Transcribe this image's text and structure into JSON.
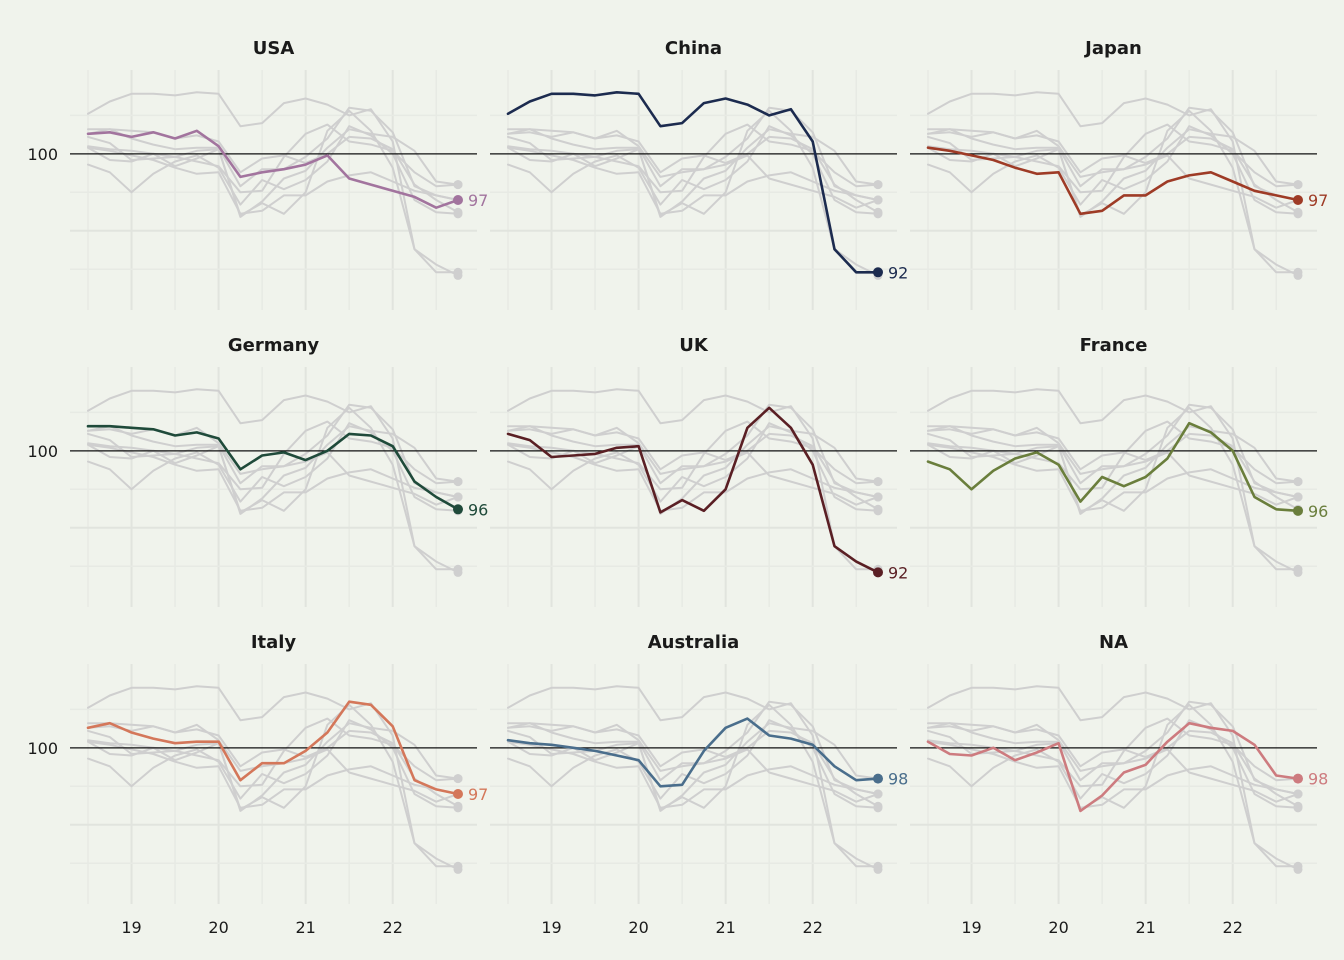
{
  "chart_data": {
    "type": "line",
    "title": "",
    "xlabel": "",
    "ylabel": "",
    "reference_value": 100,
    "reference_label": "100",
    "x_ticks": [
      19,
      20,
      21,
      22
    ],
    "x_tick_labels": [
      "19",
      "20",
      "21",
      "22"
    ],
    "xlim": [
      18.5,
      22.75
    ],
    "ylim": [
      90.5,
      104.8
    ],
    "x": [
      18.5,
      18.75,
      19.0,
      19.25,
      19.5,
      19.75,
      20.0,
      20.25,
      20.5,
      20.75,
      21.0,
      21.25,
      21.5,
      21.75,
      22.0,
      22.25,
      22.5,
      22.75
    ],
    "series": [
      {
        "name": "USA",
        "color": "#a2749e",
        "end_label": "97",
        "values": [
          101.3,
          101.4,
          101.1,
          101.4,
          101.0,
          101.5,
          100.5,
          98.5,
          98.8,
          99.0,
          99.3,
          99.9,
          98.4,
          98.0,
          97.6,
          97.2,
          96.5,
          97.0
        ]
      },
      {
        "name": "China",
        "color": "#1c2b4f",
        "end_label": "92",
        "values": [
          102.6,
          103.4,
          103.9,
          103.9,
          103.8,
          104.0,
          103.9,
          101.8,
          102.0,
          103.3,
          103.6,
          103.2,
          102.5,
          102.9,
          100.8,
          93.8,
          92.3,
          92.3
        ]
      },
      {
        "name": "Japan",
        "color": "#9e3b26",
        "end_label": "97",
        "values": [
          100.4,
          100.2,
          99.9,
          99.6,
          99.1,
          98.7,
          98.8,
          96.1,
          96.3,
          97.3,
          97.3,
          98.2,
          98.6,
          98.8,
          98.2,
          97.6,
          97.3,
          97.0
        ]
      },
      {
        "name": "Germany",
        "color": "#1f4a3a",
        "end_label": "96",
        "values": [
          101.6,
          101.6,
          101.5,
          101.4,
          101.0,
          101.2,
          100.8,
          98.8,
          99.7,
          99.9,
          99.4,
          100.0,
          101.1,
          101.0,
          100.3,
          98.0,
          97.0,
          96.2
        ]
      },
      {
        "name": "UK",
        "color": "#5a1f24",
        "end_label": "92",
        "values": [
          101.1,
          100.7,
          99.6,
          99.7,
          99.8,
          100.2,
          100.3,
          96.0,
          96.8,
          96.1,
          97.5,
          101.5,
          102.8,
          101.5,
          99.1,
          93.8,
          92.8,
          92.1
        ]
      },
      {
        "name": "France",
        "color": "#6a7e3c",
        "end_label": "96",
        "values": [
          99.3,
          98.8,
          97.5,
          98.7,
          99.5,
          99.9,
          99.1,
          96.7,
          98.3,
          97.7,
          98.3,
          99.5,
          101.8,
          101.2,
          100.0,
          97.0,
          96.2,
          96.1
        ]
      },
      {
        "name": "Italy",
        "color": "#d4775a",
        "end_label": "97",
        "values": [
          101.3,
          101.6,
          101.0,
          100.6,
          100.3,
          100.4,
          100.4,
          97.9,
          99.0,
          99.0,
          99.8,
          101.0,
          103.0,
          102.8,
          101.4,
          97.9,
          97.3,
          97.0
        ]
      },
      {
        "name": "Australia",
        "color": "#4a6e8c",
        "end_label": "98",
        "values": [
          100.5,
          100.3,
          100.2,
          100.0,
          99.8,
          99.5,
          99.2,
          97.5,
          97.6,
          99.8,
          101.3,
          101.9,
          100.8,
          100.6,
          100.2,
          98.8,
          97.9,
          98.0
        ]
      },
      {
        "name": "NA",
        "color": "#cd7b7f",
        "end_label": "98",
        "values": [
          100.4,
          99.6,
          99.5,
          100.0,
          99.2,
          99.7,
          100.3,
          95.9,
          96.9,
          98.4,
          98.9,
          100.4,
          101.6,
          101.3,
          101.1,
          100.2,
          98.2,
          98.0
        ]
      }
    ]
  }
}
